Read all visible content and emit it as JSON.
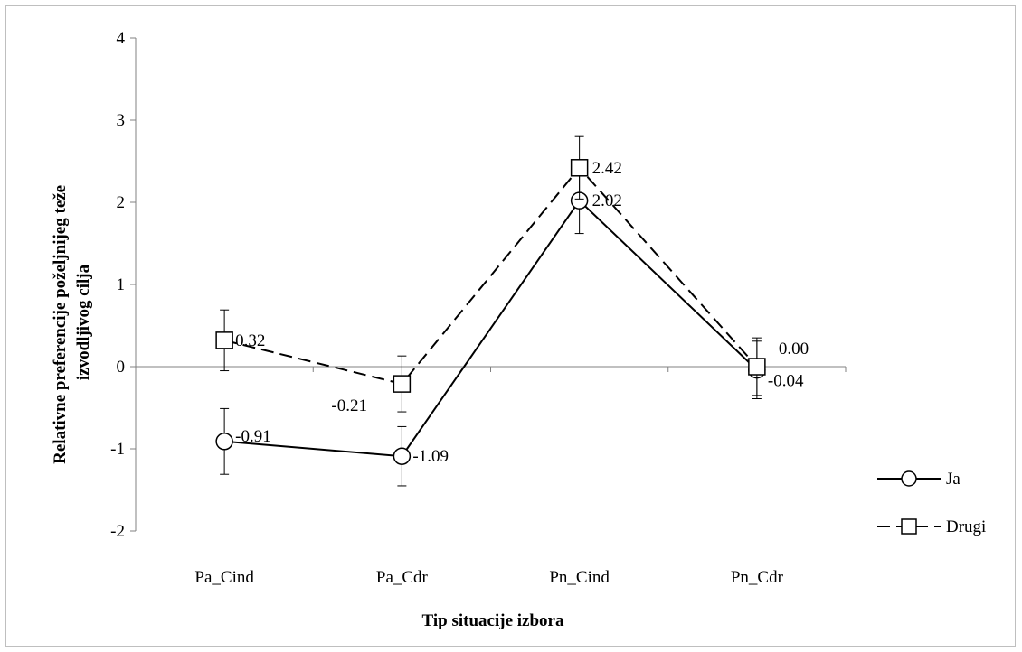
{
  "chart_data": {
    "type": "line",
    "categories": [
      "Pa_Cind",
      "Pa_Cdr",
      "Pn_Cind",
      "Pn_Cdr"
    ],
    "xlabel": "Tip situacije izbora",
    "ylabel_lines": [
      "Relativne preferencije poželjnijeg teže",
      "izvodljivog cilja"
    ],
    "ylim": [
      -2,
      4
    ],
    "yticks": [
      -2,
      -1,
      0,
      1,
      2,
      3,
      4
    ],
    "grid": false,
    "legend_position": "right",
    "series": [
      {
        "name": "Ja",
        "values": [
          -0.91,
          -1.09,
          2.02,
          -0.04
        ],
        "labels": [
          "-0.91",
          "-1.09",
          "2.02",
          "-0.04"
        ],
        "error": [
          0.4,
          0.36,
          0.4,
          0.35
        ],
        "marker": "circle",
        "line_style": "solid",
        "color": "#000000"
      },
      {
        "name": "Drugi",
        "values": [
          0.32,
          -0.21,
          2.42,
          0.0
        ],
        "labels": [
          "0.32",
          "-0.21",
          "2.42",
          "0.00"
        ],
        "error": [
          0.37,
          0.34,
          0.38,
          0.35
        ],
        "marker": "square",
        "line_style": "dashed",
        "color": "#000000"
      }
    ]
  }
}
